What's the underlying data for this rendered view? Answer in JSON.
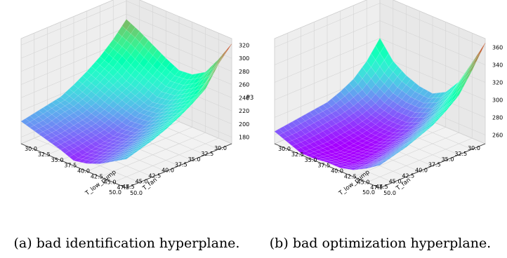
{
  "chart_data": [
    {
      "type": "surface",
      "caption": {
        "label": "(a)",
        "text": "bad identification hyperplane."
      },
      "colormap": "rainbow",
      "xlabel": "T_fan",
      "ylabel": "T_low_pump",
      "zlabel": "P3",
      "xlim": [
        30,
        50
      ],
      "ylim": [
        30,
        50
      ],
      "zlim": [
        170,
        330
      ],
      "x_ticks": [
        "30.0",
        "32.5",
        "35.0",
        "37.5",
        "40.0",
        "42.5",
        "45.0",
        "47.5",
        "50.0"
      ],
      "y_ticks": [
        "30.0",
        "32.5",
        "35.0",
        "37.5",
        "40.0",
        "42.5",
        "45.0",
        "47.5",
        "50.0"
      ],
      "z_ticks": [
        "180",
        "200",
        "220",
        "240",
        "260",
        "280",
        "300",
        "320"
      ],
      "surface": {
        "comment": "approximate P3 values on a 9x9 grid: rows = T_fan 30..50, cols = T_low_pump 30..50",
        "values": [
          [
            292,
            282,
            270,
            258,
            248,
            250,
            262,
            290,
            322
          ],
          [
            270,
            262,
            250,
            240,
            232,
            234,
            246,
            262,
            300
          ],
          [
            252,
            244,
            232,
            224,
            216,
            220,
            232,
            246,
            270
          ],
          [
            238,
            230,
            222,
            214,
            208,
            210,
            222,
            234,
            256
          ],
          [
            226,
            218,
            210,
            204,
            198,
            200,
            212,
            226,
            244
          ],
          [
            216,
            210,
            202,
            196,
            190,
            194,
            204,
            218,
            234
          ],
          [
            212,
            206,
            198,
            192,
            186,
            190,
            198,
            212,
            226
          ],
          [
            208,
            200,
            194,
            188,
            182,
            186,
            194,
            206,
            220
          ],
          [
            204,
            198,
            192,
            186,
            178,
            182,
            190,
            202,
            214
          ]
        ]
      }
    },
    {
      "type": "surface",
      "caption": {
        "label": "(b)",
        "text": "bad optimization hyperplane."
      },
      "colormap": "rainbow",
      "xlabel": "T_fan",
      "ylabel": "T_low_pump",
      "zlabel": "",
      "xlim": [
        30,
        50
      ],
      "ylim": [
        30,
        50
      ],
      "zlim": [
        250,
        370
      ],
      "x_ticks": [
        "30.0",
        "32.5",
        "35.0",
        "37.5",
        "40.0",
        "42.5",
        "45.0",
        "47.5",
        "50.0"
      ],
      "y_ticks": [
        "30.0",
        "32.5",
        "35.0",
        "37.5",
        "40.0",
        "42.5",
        "45.0",
        "47.5",
        "50.0"
      ],
      "z_ticks": [
        "260",
        "280",
        "300",
        "320",
        "340",
        "360"
      ],
      "surface": {
        "comment": "approximate P3 values on a 9x9 grid: rows = T_fan 30..50, cols = T_low_pump 30..50",
        "values": [
          [
            320,
            300,
            290,
            284,
            282,
            290,
            308,
            336,
            365
          ],
          [
            300,
            286,
            276,
            272,
            272,
            278,
            294,
            318,
            340
          ],
          [
            286,
            274,
            266,
            262,
            262,
            268,
            282,
            300,
            318
          ],
          [
            278,
            268,
            260,
            256,
            256,
            262,
            274,
            290,
            306
          ],
          [
            272,
            264,
            256,
            252,
            252,
            258,
            268,
            282,
            296
          ],
          [
            270,
            262,
            254,
            250,
            250,
            254,
            264,
            276,
            290
          ],
          [
            268,
            260,
            252,
            248,
            250,
            252,
            260,
            272,
            284
          ],
          [
            266,
            258,
            252,
            250,
            250,
            252,
            258,
            268,
            280
          ],
          [
            264,
            258,
            252,
            252,
            254,
            254,
            258,
            266,
            276
          ]
        ]
      }
    }
  ]
}
